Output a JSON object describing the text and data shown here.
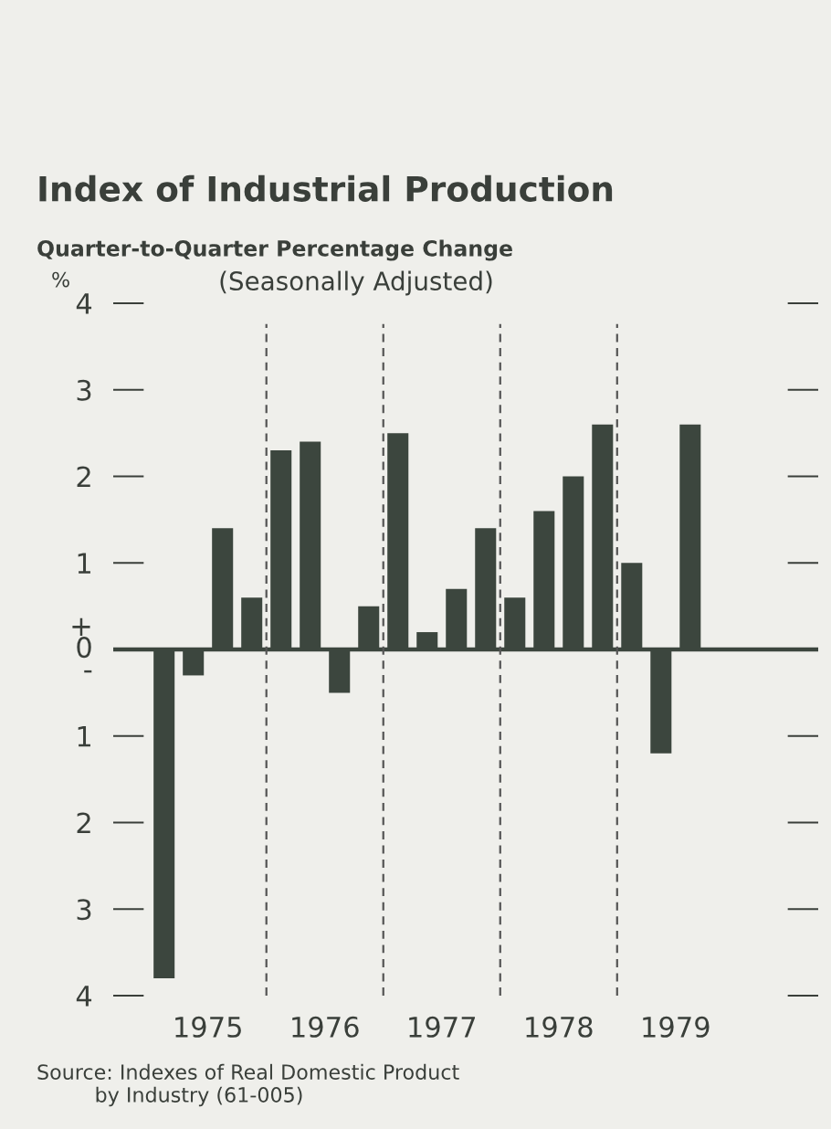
{
  "chart_data": {
    "type": "bar",
    "title": "Index of Industrial Production",
    "subtitle": "Quarter-to-Quarter Percentage Change",
    "ylabel": "%",
    "annotations": [
      "(Seasonally Adjusted)",
      "Source: Indexes of Real Domestic Product\n         by Industry (61-005)"
    ],
    "x": [
      1975.125,
      1975.375,
      1975.625,
      1975.875,
      1976.125,
      1976.375,
      1976.625,
      1976.875,
      1977.125,
      1977.375,
      1977.625,
      1977.875,
      1978.125,
      1978.375,
      1978.625,
      1978.875,
      1979.125,
      1979.375,
      1979.625
    ],
    "values": [
      -3.8,
      -0.3,
      1.4,
      0.6,
      2.3,
      2.4,
      -0.5,
      0.5,
      2.5,
      0.2,
      0.7,
      1.4,
      0.6,
      1.6,
      2.0,
      2.6,
      1.0,
      -1.2,
      2.6
    ],
    "color": "#3c463e",
    "xlim": [
      1974.69,
      1980.72
    ],
    "xticks": [
      {
        "value": 1975.5,
        "label": "1975"
      },
      {
        "value": 1976.5,
        "label": "1976"
      },
      {
        "value": 1977.5,
        "label": "1977"
      },
      {
        "value": 1978.5,
        "label": "1978"
      },
      {
        "value": 1979.5,
        "label": "1979"
      }
    ],
    "ylim": [
      -4,
      4
    ],
    "yticks": [
      {
        "value": -4,
        "label": "4"
      },
      {
        "value": -3,
        "label": "3"
      },
      {
        "value": -2,
        "label": "2"
      },
      {
        "value": -1,
        "label": "1"
      },
      {
        "value": 0,
        "label": "+\n0\n-"
      },
      1,
      2,
      3,
      4
    ],
    "ref_lines": [
      {
        "axis": "y",
        "value": 0,
        "line_style": "solid",
        "color": "#3c463e"
      },
      {
        "axis": "x",
        "value": 1976,
        "line_style": "dashed",
        "color": "#555555"
      },
      {
        "axis": "x",
        "value": 1977,
        "line_style": "dashed",
        "color": "#555555"
      },
      {
        "axis": "x",
        "value": 1978,
        "line_style": "dashed",
        "color": "#555555"
      },
      {
        "axis": "x",
        "value": 1979,
        "line_style": "dashed",
        "color": "#555555"
      }
    ],
    "grid": false,
    "legend": false
  }
}
